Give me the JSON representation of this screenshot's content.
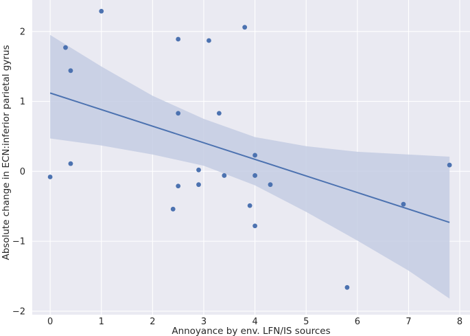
{
  "chart_data": {
    "type": "scatter",
    "xlabel": "Annoyance by env. LFN/IS sources",
    "ylabel": "Absolute change in ECN:inferior parietal gyrus",
    "xlim": [
      -0.35,
      8.2
    ],
    "ylim": [
      -2.05,
      2.45
    ],
    "xticks": [
      0,
      1,
      2,
      3,
      4,
      5,
      6,
      7,
      8
    ],
    "yticks": [
      -2,
      -1,
      0,
      1,
      2
    ],
    "xtick_labels": [
      "0",
      "1",
      "2",
      "3",
      "4",
      "5",
      "6",
      "7",
      "8"
    ],
    "ytick_labels": [
      "−2",
      "−1",
      "0",
      "1",
      "2"
    ],
    "grid": true,
    "background": "#eaeaf2",
    "grid_color": "#ffffff",
    "point_color": "#4c72b0",
    "line_color": "#4c72b0",
    "band_color": "#c4cce3",
    "points": [
      {
        "x": 0.0,
        "y": -0.08
      },
      {
        "x": 0.3,
        "y": 1.77
      },
      {
        "x": 0.4,
        "y": 1.44
      },
      {
        "x": 0.4,
        "y": 0.11
      },
      {
        "x": 1.0,
        "y": 2.29
      },
      {
        "x": 2.4,
        "y": -0.54
      },
      {
        "x": 2.5,
        "y": 1.89
      },
      {
        "x": 2.5,
        "y": 0.83
      },
      {
        "x": 2.5,
        "y": -0.21
      },
      {
        "x": 2.9,
        "y": 0.02
      },
      {
        "x": 2.9,
        "y": -0.19
      },
      {
        "x": 3.1,
        "y": 1.87
      },
      {
        "x": 3.3,
        "y": 0.83
      },
      {
        "x": 3.4,
        "y": -0.06
      },
      {
        "x": 3.8,
        "y": 2.06
      },
      {
        "x": 3.9,
        "y": -0.49
      },
      {
        "x": 4.0,
        "y": 0.23
      },
      {
        "x": 4.0,
        "y": -0.06
      },
      {
        "x": 4.0,
        "y": -0.78
      },
      {
        "x": 4.3,
        "y": -0.19
      },
      {
        "x": 5.8,
        "y": -1.66
      },
      {
        "x": 6.9,
        "y": -0.47
      },
      {
        "x": 7.8,
        "y": 0.09
      }
    ],
    "regression": {
      "x": [
        0.0,
        7.8
      ],
      "y": [
        1.12,
        -0.73
      ]
    },
    "ci_band": {
      "x": [
        0.0,
        1.0,
        2.0,
        3.0,
        4.0,
        5.0,
        6.0,
        7.0,
        7.8
      ],
      "upper": [
        1.95,
        1.5,
        1.08,
        0.75,
        0.49,
        0.36,
        0.28,
        0.24,
        0.21
      ],
      "lower": [
        0.47,
        0.37,
        0.24,
        0.08,
        -0.2,
        -0.58,
        -0.99,
        -1.42,
        -1.82
      ]
    }
  }
}
